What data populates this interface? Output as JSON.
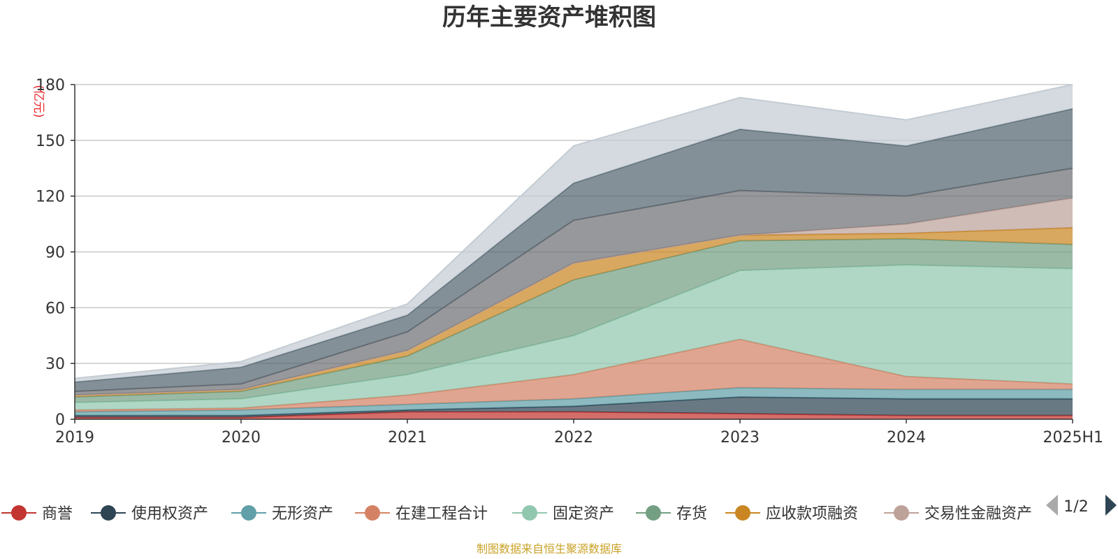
{
  "chart_data": {
    "type": "area",
    "stacked": true,
    "title": "历年主要资产堆积图",
    "unit_label": "(亿元)",
    "x": [
      "2019",
      "2020",
      "2021",
      "2022",
      "2023",
      "2024",
      "2025H1"
    ],
    "ylim": [
      0,
      180
    ],
    "yticks": [
      0,
      30,
      60,
      90,
      120,
      150,
      180
    ],
    "grid": true,
    "legend_position": "bottom",
    "series": [
      {
        "name": "商誉",
        "color": "#c23531",
        "values": [
          1,
          1,
          4,
          4,
          3,
          2,
          2
        ]
      },
      {
        "name": "使用权资产",
        "color": "#2f4554",
        "values": [
          1,
          1,
          1,
          3,
          9,
          9,
          9
        ]
      },
      {
        "name": "无形资产",
        "color": "#61a0a8",
        "values": [
          2,
          3,
          3,
          4,
          5,
          5,
          5
        ]
      },
      {
        "name": "在建工程合计",
        "color": "#d48265",
        "values": [
          1,
          1,
          5,
          13,
          26,
          7,
          3
        ]
      },
      {
        "name": "固定资产",
        "color": "#91c7ae",
        "values": [
          4,
          5,
          11,
          21,
          37,
          60,
          62
        ]
      },
      {
        "name": "存货",
        "color": "#749f83",
        "values": [
          3,
          4,
          10,
          30,
          16,
          14,
          13
        ]
      },
      {
        "name": "应收款项融资",
        "color": "#ca8622",
        "values": [
          1,
          1,
          3,
          9,
          3,
          3,
          9
        ]
      },
      {
        "name": "交易性金融资产",
        "color": "#bda29a",
        "values": [
          0,
          0,
          0,
          0,
          0,
          5,
          16
        ]
      },
      {
        "name": "",
        "color": "#6e7074",
        "values": [
          2,
          3,
          10,
          23,
          24,
          15,
          16
        ]
      },
      {
        "name": "",
        "color": "#546570",
        "values": [
          5,
          9,
          9,
          20,
          33,
          27,
          32
        ]
      },
      {
        "name": "",
        "color": "#c4ccd3",
        "values": [
          2,
          3,
          6,
          20,
          17,
          14,
          13
        ]
      }
    ]
  },
  "legend": {
    "items": [
      "商誉",
      "使用权资产",
      "无形资产",
      "在建工程合计",
      "固定资产",
      "存货",
      "应收款项融资",
      "交易性金融资产"
    ],
    "page_indicator": "1/2"
  },
  "source_note": "制图数据来自恒生聚源数据库"
}
